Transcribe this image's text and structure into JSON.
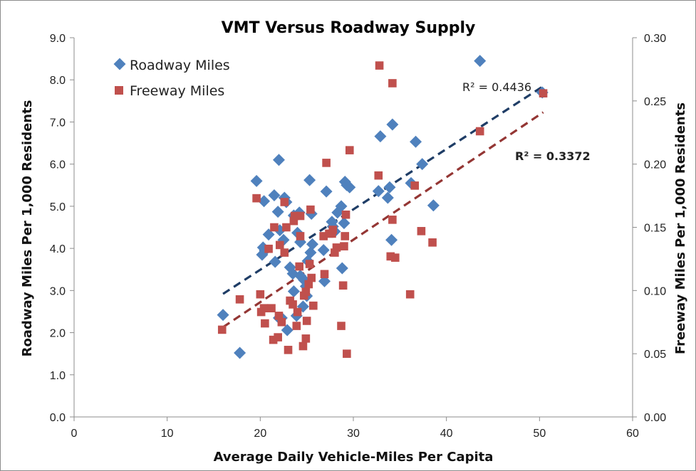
{
  "chart_data": {
    "type": "scatter",
    "title": "VMT Versus Roadway Supply",
    "xlabel": "Average Daily Vehicle-Miles Per Capita",
    "ylabel": "Roadway Miles Per 1,000 Residents",
    "y2label": "Freeway Miles Per 1,000 Residents",
    "xlim": [
      0,
      60
    ],
    "ylim": [
      0,
      9
    ],
    "y2lim": [
      0,
      0.3
    ],
    "x_ticks": [
      "0",
      "10",
      "20",
      "30",
      "40",
      "50",
      "60"
    ],
    "y_ticks": [
      "0.0",
      "1.0",
      "2.0",
      "3.0",
      "4.0",
      "5.0",
      "6.0",
      "7.0",
      "8.0",
      "9.0"
    ],
    "y2_ticks": [
      "0.00",
      "0.05",
      "0.10",
      "0.15",
      "0.20",
      "0.25",
      "0.30"
    ],
    "grid": false,
    "legend_position": "top-left",
    "series": [
      {
        "name": "Roadway Miles",
        "axis": "left",
        "marker": "diamond",
        "color": "#4F81BD",
        "trendline": {
          "x": [
            16,
            50.4
          ],
          "y": [
            2.92,
            7.85
          ],
          "color": "#1F3D66",
          "r2_label": "R² = 0.4436",
          "r2_color": "#2E5D8E"
        },
        "points": [
          [
            16.0,
            2.42
          ],
          [
            17.8,
            1.52
          ],
          [
            19.6,
            5.6
          ],
          [
            20.4,
            5.12
          ],
          [
            20.9,
            4.33
          ],
          [
            20.2,
            3.85
          ],
          [
            20.5,
            3.95
          ],
          [
            20.3,
            4.02
          ],
          [
            21.5,
            5.26
          ],
          [
            22.0,
            6.1
          ],
          [
            21.6,
            3.68
          ],
          [
            21.9,
            4.87
          ],
          [
            22.1,
            4.43
          ],
          [
            22.6,
            5.2
          ],
          [
            22.8,
            5.1
          ],
          [
            22.5,
            4.2
          ],
          [
            22.0,
            2.35
          ],
          [
            22.3,
            2.35
          ],
          [
            22.9,
            2.06
          ],
          [
            23.2,
            3.55
          ],
          [
            23.5,
            3.4
          ],
          [
            23.6,
            4.78
          ],
          [
            23.6,
            2.98
          ],
          [
            23.9,
            2.4
          ],
          [
            24.0,
            4.37
          ],
          [
            24.2,
            4.85
          ],
          [
            24.3,
            3.35
          ],
          [
            24.3,
            4.15
          ],
          [
            24.6,
            2.62
          ],
          [
            24.7,
            3.25
          ],
          [
            24.9,
            3.1
          ],
          [
            25.0,
            2.87
          ],
          [
            25.1,
            3.7
          ],
          [
            25.3,
            5.62
          ],
          [
            25.4,
            3.9
          ],
          [
            25.5,
            4.82
          ],
          [
            25.6,
            4.1
          ],
          [
            26.8,
            3.96
          ],
          [
            26.9,
            3.22
          ],
          [
            27.1,
            5.35
          ],
          [
            27.7,
            4.63
          ],
          [
            27.8,
            4.52
          ],
          [
            28.0,
            4.4
          ],
          [
            28.3,
            4.85
          ],
          [
            28.7,
            5.0
          ],
          [
            28.8,
            3.53
          ],
          [
            29.0,
            4.6
          ],
          [
            29.1,
            5.58
          ],
          [
            29.3,
            5.5
          ],
          [
            29.6,
            5.45
          ],
          [
            32.7,
            5.36
          ],
          [
            32.9,
            6.66
          ],
          [
            33.7,
            5.2
          ],
          [
            33.9,
            5.45
          ],
          [
            34.1,
            4.2
          ],
          [
            34.2,
            6.94
          ],
          [
            36.2,
            5.55
          ],
          [
            36.7,
            6.53
          ],
          [
            37.4,
            6.0
          ],
          [
            38.6,
            5.02
          ],
          [
            43.6,
            8.45
          ],
          [
            50.3,
            7.7
          ]
        ]
      },
      {
        "name": "Freeway Miles",
        "axis": "right",
        "marker": "square",
        "color": "#C0504D",
        "trendline": {
          "x": [
            16,
            50.4
          ],
          "y": [
            0.071,
            0.241
          ],
          "color": "#943634",
          "r2_label": "R² = 0.3372",
          "r2_color": "#943634"
        },
        "points": [
          [
            15.9,
            0.069
          ],
          [
            17.8,
            0.093
          ],
          [
            19.6,
            0.173
          ],
          [
            20.0,
            0.097
          ],
          [
            20.1,
            0.083
          ],
          [
            20.4,
            0.086
          ],
          [
            20.5,
            0.074
          ],
          [
            20.9,
            0.133
          ],
          [
            21.2,
            0.086
          ],
          [
            21.4,
            0.061
          ],
          [
            21.5,
            0.15
          ],
          [
            21.9,
            0.063
          ],
          [
            22.0,
            0.08
          ],
          [
            22.1,
            0.136
          ],
          [
            22.3,
            0.075
          ],
          [
            22.6,
            0.17
          ],
          [
            22.6,
            0.13
          ],
          [
            22.8,
            0.15
          ],
          [
            23.0,
            0.053
          ],
          [
            23.2,
            0.092
          ],
          [
            23.5,
            0.089
          ],
          [
            23.6,
            0.155
          ],
          [
            23.7,
            0.159
          ],
          [
            23.9,
            0.072
          ],
          [
            24.0,
            0.083
          ],
          [
            24.2,
            0.119
          ],
          [
            24.3,
            0.159
          ],
          [
            24.3,
            0.143
          ],
          [
            24.6,
            0.056
          ],
          [
            24.7,
            0.096
          ],
          [
            24.9,
            0.099
          ],
          [
            24.9,
            0.062
          ],
          [
            25.0,
            0.076
          ],
          [
            25.2,
            0.105
          ],
          [
            25.3,
            0.121
          ],
          [
            25.4,
            0.164
          ],
          [
            25.5,
            0.11
          ],
          [
            25.7,
            0.088
          ],
          [
            26.8,
            0.143
          ],
          [
            26.9,
            0.113
          ],
          [
            27.1,
            0.201
          ],
          [
            27.4,
            0.145
          ],
          [
            27.7,
            0.145
          ],
          [
            27.8,
            0.148
          ],
          [
            28.0,
            0.13
          ],
          [
            28.2,
            0.134
          ],
          [
            28.7,
            0.072
          ],
          [
            28.9,
            0.104
          ],
          [
            29.0,
            0.135
          ],
          [
            29.1,
            0.143
          ],
          [
            29.2,
            0.16
          ],
          [
            29.3,
            0.05
          ],
          [
            29.6,
            0.211
          ],
          [
            32.7,
            0.191
          ],
          [
            32.8,
            0.278
          ],
          [
            34.0,
            0.127
          ],
          [
            34.2,
            0.156
          ],
          [
            34.2,
            0.264
          ],
          [
            34.5,
            0.126
          ],
          [
            36.1,
            0.097
          ],
          [
            36.6,
            0.183
          ],
          [
            37.3,
            0.147
          ],
          [
            38.5,
            0.138
          ],
          [
            43.6,
            0.226
          ],
          [
            50.4,
            0.256
          ]
        ]
      }
    ]
  }
}
